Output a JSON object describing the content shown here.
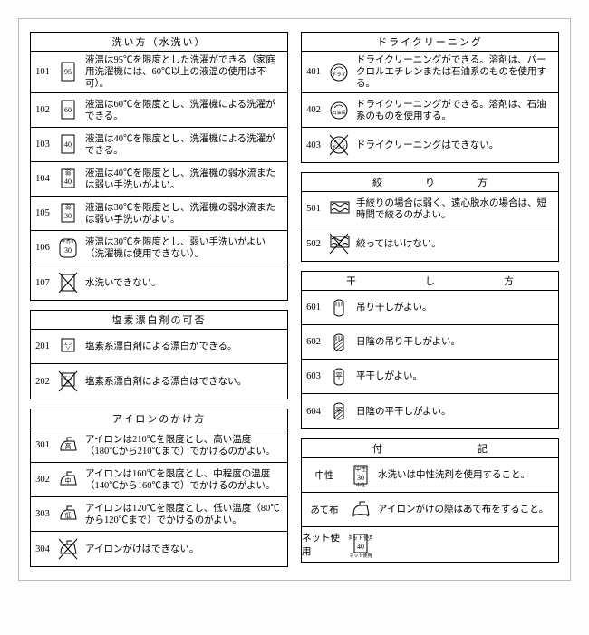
{
  "sections": {
    "wash": {
      "title": "洗い方（水洗い）",
      "rows": [
        {
          "n": "101",
          "icon": "wash95",
          "t": "液温は95℃を限度とした洗濯ができる（家庭用洗濯機には、60℃以上の液温の使用は不可）。"
        },
        {
          "n": "102",
          "icon": "wash60",
          "t": "液温は60℃を限度とし、洗濯機による洗濯ができる。"
        },
        {
          "n": "103",
          "icon": "wash40",
          "t": "液温は40℃を限度とし、洗濯機による洗濯ができる。"
        },
        {
          "n": "104",
          "icon": "wash40w",
          "t": "液温は40℃を限度とし、洗濯機の弱水流または弱い手洗いがよい。"
        },
        {
          "n": "105",
          "icon": "wash30w",
          "t": "液温は30℃を限度とし、洗濯機の弱水流または弱い手洗いがよい。"
        },
        {
          "n": "106",
          "icon": "hand30",
          "t": "液温は30℃を限度とし、弱い手洗いがよい（洗濯機は使用できない）。"
        },
        {
          "n": "107",
          "icon": "nowash",
          "t": "水洗いできない。"
        }
      ]
    },
    "bleach": {
      "title": "塩素漂白剤の可否",
      "rows": [
        {
          "n": "201",
          "icon": "bleach",
          "t": "塩素系漂白剤による漂白ができる。"
        },
        {
          "n": "202",
          "icon": "nobleach",
          "t": "塩素系漂白剤による漂白はできない。"
        }
      ]
    },
    "iron": {
      "title": "アイロンのかけ方",
      "rows": [
        {
          "n": "301",
          "icon": "ironH",
          "t": "アイロンは210℃を限度とし、高い温度（180℃から210℃まで）でかけるのがよい。"
        },
        {
          "n": "302",
          "icon": "ironM",
          "t": "アイロンは160℃を限度とし、中程度の温度（140℃から160℃まで）でかけるのがよい。"
        },
        {
          "n": "303",
          "icon": "ironL",
          "t": "アイロンは120℃を限度とし、低い温度（80℃から120℃まで）でかけるのがよい。"
        },
        {
          "n": "304",
          "icon": "noiron",
          "t": "アイロンがけはできない。"
        }
      ]
    },
    "dry": {
      "title": "ドライクリーニング",
      "rows": [
        {
          "n": "401",
          "icon": "dryP",
          "t": "ドライクリーニングができる。溶剤は、パークロルエチレンまたは石油系のものを使用する。"
        },
        {
          "n": "402",
          "icon": "dryF",
          "t": "ドライクリーニングができる。溶剤は、石油系のものを使用する。"
        },
        {
          "n": "403",
          "icon": "nodry",
          "t": "ドライクリーニングはできない。"
        }
      ]
    },
    "wring": {
      "title": "絞　り　方",
      "rows": [
        {
          "n": "501",
          "icon": "wring",
          "t": "手絞りの場合は弱く、遠心脱水の場合は、短時間で絞るのがよい。"
        },
        {
          "n": "502",
          "icon": "nowring",
          "t": "絞ってはいけない。"
        }
      ]
    },
    "drying": {
      "title": "干　　し　　方",
      "rows": [
        {
          "n": "601",
          "icon": "hang",
          "t": "吊り干しがよい。"
        },
        {
          "n": "602",
          "icon": "hangshade",
          "t": "日陰の吊り干しがよい。"
        },
        {
          "n": "603",
          "icon": "flat",
          "t": "平干しがよい。"
        },
        {
          "n": "604",
          "icon": "flatshade",
          "t": "日陰の平干しがよい。"
        }
      ]
    },
    "note": {
      "title": "付　　　記",
      "rows": [
        {
          "label": "中性",
          "icon": "neutral",
          "t": "水洗いは中性洗剤を使用すること。"
        },
        {
          "label": "あて布",
          "icon": "cloth",
          "t": "アイロンがけの際はあて布をすること。"
        },
        {
          "label": "ネット使用",
          "icon": "net",
          "t": ""
        }
      ]
    }
  },
  "iconText": {
    "wash95": "95",
    "wash60": "60",
    "wash40": "40",
    "wash40w": "40",
    "wash30w": "30",
    "hand30": "30",
    "ironH": "高",
    "ironM": "中",
    "ironL": "低",
    "neutral": "30",
    "net": "40"
  },
  "iconSub": {
    "wash40w": "弱",
    "wash30w": "弱",
    "hand30": "手洗イ",
    "neutral": "中性",
    "net": "ネット使用"
  }
}
